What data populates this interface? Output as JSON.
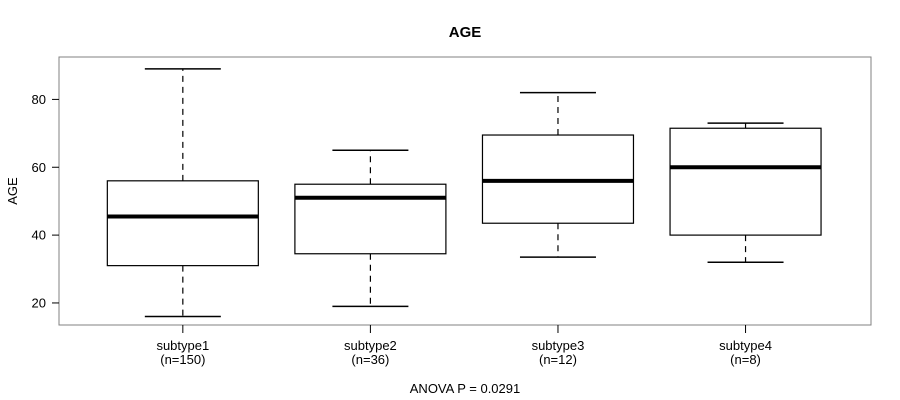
{
  "chart_data": {
    "type": "boxplot",
    "title": "AGE",
    "ylabel": "AGE",
    "xlabel": "",
    "annotation": "ANOVA P = 0.0291",
    "ylim": [
      13.5,
      92.5
    ],
    "yticks": [
      20,
      40,
      60,
      80
    ],
    "grid": false,
    "legend": null,
    "groups": [
      {
        "label": "subtype1",
        "sublabel": "(n=150)",
        "min": 16,
        "q1": 31,
        "median": 45.5,
        "q3": 56,
        "max": 89
      },
      {
        "label": "subtype2",
        "sublabel": "(n=36)",
        "min": 19,
        "q1": 34.5,
        "median": 51,
        "q3": 55,
        "max": 65
      },
      {
        "label": "subtype3",
        "sublabel": "(n=12)",
        "min": 33.5,
        "q1": 43.5,
        "median": 56,
        "q3": 69.5,
        "max": 82
      },
      {
        "label": "subtype4",
        "sublabel": "(n=8)",
        "min": 32,
        "q1": 40,
        "median": 60,
        "q3": 71.5,
        "max": 73
      }
    ],
    "colors": {
      "background": "#ffffff",
      "frame": "#808080",
      "box_border": "#000000",
      "box_fill": "#ffffff",
      "median": "#000000",
      "whisker": "#000000",
      "text": "#000000"
    }
  }
}
